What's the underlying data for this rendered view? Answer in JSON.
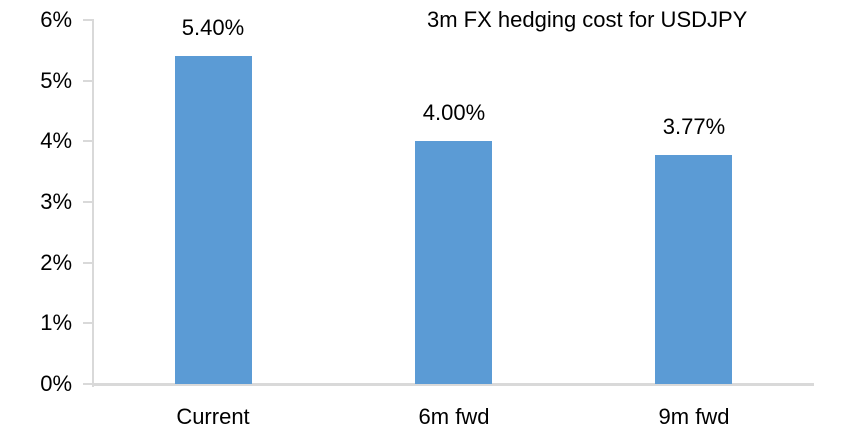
{
  "chart_data": {
    "type": "bar",
    "title": "3m FX hedging cost for USDJPY",
    "categories": [
      "Current",
      "6m fwd",
      "9m fwd"
    ],
    "values": [
      5.4,
      4.0,
      3.77
    ],
    "value_labels": [
      "5.40%",
      "4.00%",
      "3.77%"
    ],
    "xlabel": "",
    "ylabel": "",
    "ylim": [
      0,
      6
    ],
    "ytick_labels": [
      "0%",
      "1%",
      "2%",
      "3%",
      "4%",
      "5%",
      "6%"
    ],
    "grid": "off",
    "legend": "none",
    "colors": {
      "bar": "#5B9BD5",
      "axis": "#D9D9D9",
      "text": "#000000",
      "background": "#FFFFFF"
    }
  }
}
